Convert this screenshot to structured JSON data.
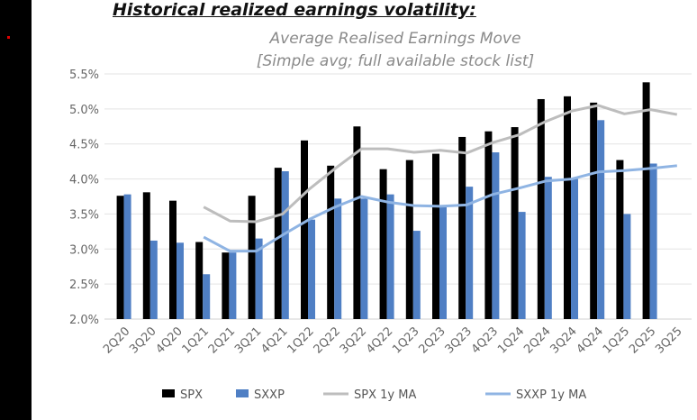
{
  "chart_data": {
    "type": "bar",
    "title": "Historical realized earnings volatility:",
    "subtitle": [
      "Average Realised Earnings Move",
      "[Simple avg; full available stock list]"
    ],
    "categories": [
      "2Q20",
      "3Q20",
      "4Q20",
      "1Q21",
      "2Q21",
      "3Q21",
      "4Q21",
      "1Q22",
      "2Q22",
      "3Q22",
      "4Q22",
      "1Q23",
      "2Q23",
      "3Q23",
      "4Q23",
      "1Q24",
      "2Q24",
      "3Q24",
      "4Q24",
      "1Q25",
      "2Q25",
      "3Q25"
    ],
    "ylim": [
      2.0,
      5.5
    ],
    "yticks": [
      "2.0%",
      "2.5%",
      "3.0%",
      "3.5%",
      "4.0%",
      "4.5%",
      "5.0%",
      "5.5%"
    ],
    "grid": true,
    "legend": "bottom",
    "series": [
      {
        "name": "SPX",
        "kind": "bar",
        "color": "#000000",
        "values": [
          3.76,
          3.81,
          3.69,
          3.1,
          2.95,
          3.76,
          4.16,
          4.55,
          4.19,
          4.75,
          4.14,
          4.27,
          4.36,
          4.6,
          4.68,
          4.74,
          5.14,
          5.18,
          5.09,
          4.27,
          5.38,
          null
        ]
      },
      {
        "name": "SXXP",
        "kind": "bar",
        "color": "#4f7fc4",
        "values": [
          3.78,
          3.12,
          3.09,
          2.64,
          2.95,
          3.15,
          4.11,
          3.42,
          3.72,
          3.72,
          3.78,
          3.26,
          3.62,
          3.89,
          4.38,
          3.53,
          4.03,
          4.0,
          4.84,
          3.5,
          4.22,
          null
        ]
      },
      {
        "name": "SPX 1y MA",
        "kind": "line",
        "color": "#bdbdbd",
        "values": [
          null,
          null,
          null,
          3.6,
          3.4,
          3.39,
          3.5,
          3.85,
          4.15,
          4.43,
          4.43,
          4.38,
          4.41,
          4.37,
          4.52,
          4.63,
          4.82,
          4.97,
          5.05,
          4.93,
          4.99,
          4.92
        ]
      },
      {
        "name": "SXXP 1y MA",
        "kind": "line",
        "color": "#8fb4e3",
        "values": [
          null,
          null,
          null,
          3.17,
          2.97,
          2.97,
          3.2,
          3.42,
          3.6,
          3.75,
          3.67,
          3.62,
          3.61,
          3.63,
          3.78,
          3.87,
          3.97,
          4.0,
          4.1,
          4.12,
          4.15,
          4.19
        ]
      }
    ]
  }
}
